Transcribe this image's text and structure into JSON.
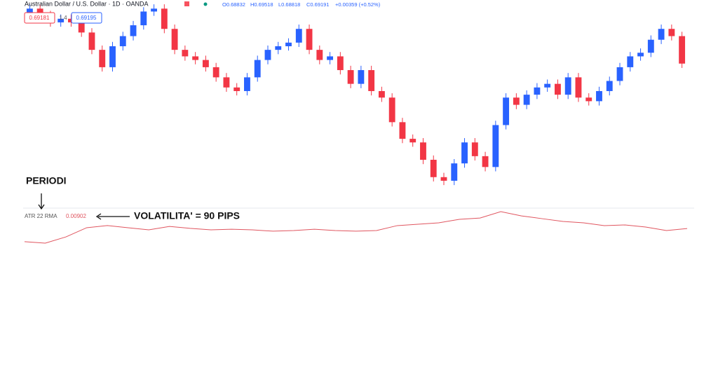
{
  "header": {
    "symbol": "Australian Dollar / U.S. Dollar · 1D · OANDA",
    "open": "O0.68832",
    "high": "H0.69518",
    "low": "L0.68818",
    "close": "C0.69191",
    "change": "+0.00359 (+0.52%)",
    "sell": "0.69181",
    "spread": "1.4",
    "buy": "0.69195"
  },
  "annotations": {
    "period": "PERIODI",
    "volatility": "VOLATILITA' = 90 PIPS"
  },
  "chart_data": [
    {
      "type": "candlestick",
      "title": "Australian Dollar / U.S. Dollar",
      "up_color": "#2962ff",
      "down_color": "#f23645",
      "ylim": [
        0.6724,
        0.7005
      ],
      "ohlc": [
        [
          0.699,
          0.7001,
          0.6984,
          0.6995
        ],
        [
          0.6995,
          0.7001,
          0.698,
          0.6986
        ],
        [
          0.6986,
          0.6992,
          0.697,
          0.6976
        ],
        [
          0.6976,
          0.6987,
          0.697,
          0.6981
        ],
        [
          0.6981,
          0.6987,
          0.697,
          0.6976
        ],
        [
          0.6976,
          0.6982,
          0.6956,
          0.6962
        ],
        [
          0.6962,
          0.6968,
          0.6932,
          0.6938
        ],
        [
          0.6938,
          0.6944,
          0.6908,
          0.6914
        ],
        [
          0.6914,
          0.6949,
          0.6908,
          0.6943
        ],
        [
          0.6943,
          0.6963,
          0.6937,
          0.6957
        ],
        [
          0.6957,
          0.6978,
          0.6951,
          0.6972
        ],
        [
          0.6972,
          0.6997,
          0.6966,
          0.6991
        ],
        [
          0.6991,
          0.7001,
          0.6985,
          0.6995
        ],
        [
          0.6995,
          0.7001,
          0.6961,
          0.6967
        ],
        [
          0.6967,
          0.6973,
          0.6932,
          0.6938
        ],
        [
          0.6938,
          0.6944,
          0.6923,
          0.6929
        ],
        [
          0.6929,
          0.6935,
          0.6918,
          0.6924
        ],
        [
          0.6924,
          0.693,
          0.6908,
          0.6914
        ],
        [
          0.6914,
          0.692,
          0.6894,
          0.69
        ],
        [
          0.69,
          0.6906,
          0.688,
          0.6886
        ],
        [
          0.6886,
          0.6892,
          0.6875,
          0.6881
        ],
        [
          0.6881,
          0.6906,
          0.6875,
          0.69
        ],
        [
          0.69,
          0.693,
          0.6894,
          0.6924
        ],
        [
          0.6924,
          0.6944,
          0.6918,
          0.6938
        ],
        [
          0.6938,
          0.6949,
          0.6932,
          0.6943
        ],
        [
          0.6943,
          0.6954,
          0.6937,
          0.6948
        ],
        [
          0.6948,
          0.6973,
          0.6942,
          0.6967
        ],
        [
          0.6967,
          0.6973,
          0.6932,
          0.6938
        ],
        [
          0.6938,
          0.6944,
          0.6918,
          0.6924
        ],
        [
          0.6924,
          0.6935,
          0.6918,
          0.6929
        ],
        [
          0.6929,
          0.6935,
          0.6904,
          0.691
        ],
        [
          0.691,
          0.6916,
          0.6885,
          0.6891
        ],
        [
          0.6891,
          0.6916,
          0.6885,
          0.691
        ],
        [
          0.691,
          0.6916,
          0.6875,
          0.6881
        ],
        [
          0.6881,
          0.6887,
          0.6866,
          0.6872
        ],
        [
          0.6872,
          0.6878,
          0.6832,
          0.6838
        ],
        [
          0.6838,
          0.6844,
          0.6809,
          0.6815
        ],
        [
          0.6815,
          0.6821,
          0.6804,
          0.681
        ],
        [
          0.681,
          0.6816,
          0.678,
          0.6786
        ],
        [
          0.6786,
          0.6792,
          0.6756,
          0.6762
        ],
        [
          0.6762,
          0.6768,
          0.6751,
          0.6757
        ],
        [
          0.6757,
          0.6787,
          0.6751,
          0.6781
        ],
        [
          0.6781,
          0.6816,
          0.6775,
          0.681
        ],
        [
          0.681,
          0.6816,
          0.6785,
          0.6791
        ],
        [
          0.6791,
          0.6797,
          0.677,
          0.6776
        ],
        [
          0.6776,
          0.684,
          0.677,
          0.6834
        ],
        [
          0.6834,
          0.6878,
          0.6828,
          0.6872
        ],
        [
          0.6872,
          0.6878,
          0.6856,
          0.6862
        ],
        [
          0.6862,
          0.6882,
          0.6856,
          0.6876
        ],
        [
          0.6876,
          0.6892,
          0.687,
          0.6886
        ],
        [
          0.6886,
          0.6897,
          0.688,
          0.6891
        ],
        [
          0.6891,
          0.6897,
          0.687,
          0.6876
        ],
        [
          0.6876,
          0.6906,
          0.687,
          0.69
        ],
        [
          0.69,
          0.6906,
          0.6866,
          0.6872
        ],
        [
          0.6872,
          0.6878,
          0.6861,
          0.6867
        ],
        [
          0.6867,
          0.6887,
          0.6861,
          0.6881
        ],
        [
          0.6881,
          0.6901,
          0.6875,
          0.6895
        ],
        [
          0.6895,
          0.692,
          0.6889,
          0.6914
        ],
        [
          0.6914,
          0.6935,
          0.6908,
          0.6929
        ],
        [
          0.6929,
          0.694,
          0.6923,
          0.6934
        ],
        [
          0.6934,
          0.6958,
          0.6928,
          0.6952
        ],
        [
          0.6952,
          0.6973,
          0.6946,
          0.6967
        ],
        [
          0.6967,
          0.6973,
          0.6951,
          0.6957
        ],
        [
          0.6957,
          0.6963,
          0.6913,
          0.6919
        ]
      ]
    },
    {
      "type": "line",
      "title": "ATR 22 RMA",
      "color": "#e0555f",
      "ylim": [
        0.0075,
        0.0105
      ],
      "values": [
        0.00803,
        0.00792,
        0.00839,
        0.00908,
        0.00924,
        0.00908,
        0.00892,
        0.00918,
        0.00903,
        0.00892,
        0.00897,
        0.00892,
        0.00882,
        0.00887,
        0.00897,
        0.00887,
        0.00882,
        0.00887,
        0.00924,
        0.00934,
        0.00945,
        0.00971,
        0.00981,
        0.01029,
        0.00997,
        0.00976,
        0.00955,
        0.00945,
        0.00924,
        0.00929,
        0.00913,
        0.00887,
        0.00902
      ]
    }
  ]
}
